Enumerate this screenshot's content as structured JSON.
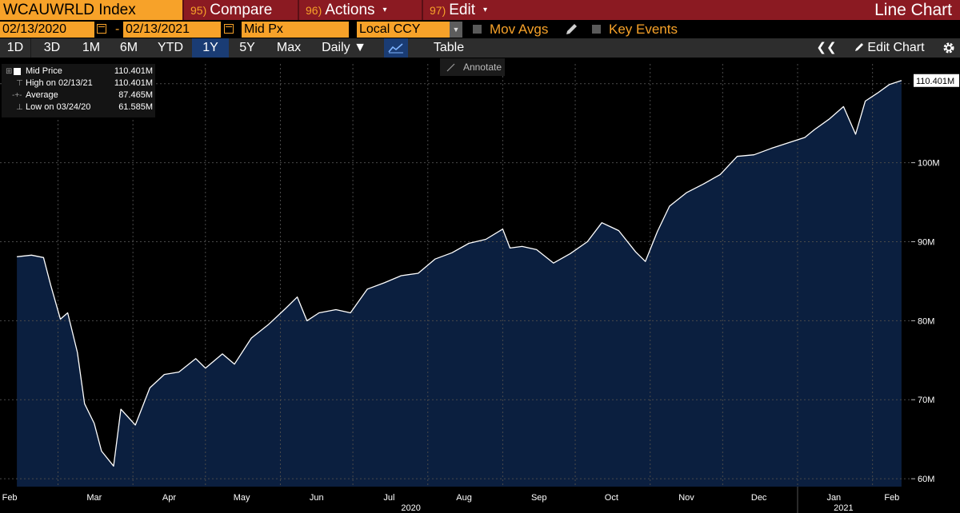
{
  "header": {
    "index_label": "WCAUWRLD Index",
    "menu": [
      {
        "num": "95)",
        "label": "Compare",
        "caret": ""
      },
      {
        "num": "96)",
        "label": "Actions",
        "caret": "▾"
      },
      {
        "num": "97)",
        "label": "Edit",
        "caret": "▾"
      }
    ],
    "view_title": "Line Chart"
  },
  "controls": {
    "start_date": "02/13/2020",
    "end_date": "02/13/2021",
    "date_separator": "-",
    "field": "Mid Px",
    "currency": "Local CCY",
    "mov_avgs": "Mov Avgs",
    "key_events": "Key Events"
  },
  "toolbar": {
    "ranges": [
      "1D",
      "3D",
      "1M",
      "6M",
      "YTD",
      "1Y",
      "5Y",
      "Max"
    ],
    "selected_range": "1Y",
    "frequency": "Daily",
    "table_label": "Table",
    "edit_chart": "Edit Chart",
    "annotate": "Annotate"
  },
  "legend": {
    "rows": [
      {
        "label": "Mid Price",
        "value": "110.401M"
      },
      {
        "label": "High on 02/13/21",
        "value": "110.401M"
      },
      {
        "label": "Average",
        "value": "87.465M"
      },
      {
        "label": "Low on 03/24/20",
        "value": "61.585M"
      }
    ]
  },
  "colors": {
    "accent": "#f7a229",
    "title_bar": "#8b1a22",
    "area_fill": "#0b1f3f",
    "line": "#ffffff",
    "selected_button": "#1a3c74"
  },
  "chart_data": {
    "type": "area",
    "series": [
      {
        "name": "Mid Price",
        "x": [
          "2020-02-13",
          "2020-02-19",
          "2020-02-24",
          "2020-02-27",
          "2020-03-02",
          "2020-03-05",
          "2020-03-09",
          "2020-03-12",
          "2020-03-16",
          "2020-03-19",
          "2020-03-24",
          "2020-03-27",
          "2020-04-02",
          "2020-04-08",
          "2020-04-14",
          "2020-04-20",
          "2020-04-27",
          "2020-05-01",
          "2020-05-08",
          "2020-05-13",
          "2020-05-20",
          "2020-05-27",
          "2020-06-03",
          "2020-06-08",
          "2020-06-12",
          "2020-06-17",
          "2020-06-24",
          "2020-06-30",
          "2020-07-07",
          "2020-07-14",
          "2020-07-21",
          "2020-07-28",
          "2020-08-04",
          "2020-08-11",
          "2020-08-18",
          "2020-08-25",
          "2020-09-01",
          "2020-09-04",
          "2020-09-09",
          "2020-09-15",
          "2020-09-22",
          "2020-09-29",
          "2020-10-06",
          "2020-10-12",
          "2020-10-19",
          "2020-10-26",
          "2020-10-30",
          "2020-11-04",
          "2020-11-09",
          "2020-11-16",
          "2020-11-23",
          "2020-11-30",
          "2020-12-07",
          "2020-12-14",
          "2020-12-21",
          "2020-12-28",
          "2021-01-04",
          "2021-01-08",
          "2021-01-14",
          "2021-01-20",
          "2021-01-25",
          "2021-01-29",
          "2021-02-03",
          "2021-02-08",
          "2021-02-13"
        ],
        "values": [
          88.1,
          88.3,
          88.0,
          84.5,
          80.2,
          81.0,
          76.0,
          69.5,
          67.0,
          63.5,
          61.6,
          68.8,
          66.8,
          71.5,
          73.2,
          73.5,
          75.2,
          74.0,
          75.8,
          74.5,
          77.8,
          79.5,
          81.5,
          83.0,
          80.0,
          81.0,
          81.4,
          81.0,
          84.0,
          84.8,
          85.7,
          86.0,
          87.8,
          88.6,
          89.8,
          90.3,
          91.6,
          89.2,
          89.4,
          89.0,
          87.3,
          88.5,
          90.0,
          92.4,
          91.4,
          88.7,
          87.5,
          91.3,
          94.5,
          96.2,
          97.3,
          98.5,
          100.8,
          101.0,
          101.8,
          102.5,
          103.2,
          104.2,
          105.5,
          107.1,
          103.6,
          107.8,
          108.8,
          109.9,
          110.4
        ]
      }
    ],
    "x_ticks": [
      "Feb",
      "Mar",
      "Apr",
      "May",
      "Jun",
      "Jul",
      "Aug",
      "Sep",
      "Oct",
      "Nov",
      "Dec",
      "Jan",
      "Feb"
    ],
    "year_labels": [
      "2020",
      "2021"
    ],
    "y_ticks": [
      "60M",
      "70M",
      "80M",
      "90M",
      "100M"
    ],
    "ylim": [
      59,
      112.5
    ],
    "last_value_label": "110.401M",
    "grid": true
  }
}
